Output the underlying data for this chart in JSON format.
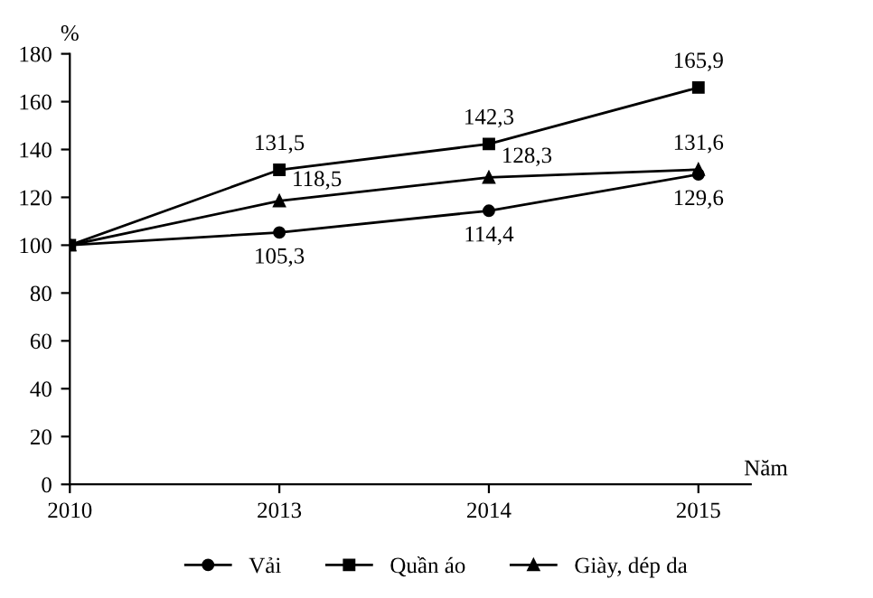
{
  "chart_data": {
    "type": "line",
    "ylabel": "%",
    "xlabel": "Năm",
    "categories": [
      "2010",
      "2013",
      "2014",
      "2015"
    ],
    "ylim": [
      0,
      180
    ],
    "yticks": [
      0,
      20,
      40,
      60,
      80,
      100,
      120,
      140,
      160,
      180
    ],
    "grid": false,
    "legend": "bottom",
    "series": [
      {
        "name": "Vải",
        "color": "#000000",
        "marker": "circle",
        "values": [
          100,
          105.3,
          114.4,
          129.6
        ],
        "value_labels": [
          null,
          "105,3",
          "114,4",
          "129,6"
        ]
      },
      {
        "name": "Quần áo",
        "color": "#000000",
        "marker": "square",
        "values": [
          100,
          131.5,
          142.3,
          165.9
        ],
        "value_labels": [
          null,
          "131,5",
          "142,3",
          "165,9"
        ]
      },
      {
        "name": "Giày, dép da",
        "color": "#000000",
        "marker": "triangle",
        "values": [
          100,
          118.5,
          128.3,
          131.6
        ],
        "value_labels": [
          null,
          "118,5",
          "128,3",
          "131,6"
        ]
      }
    ]
  }
}
